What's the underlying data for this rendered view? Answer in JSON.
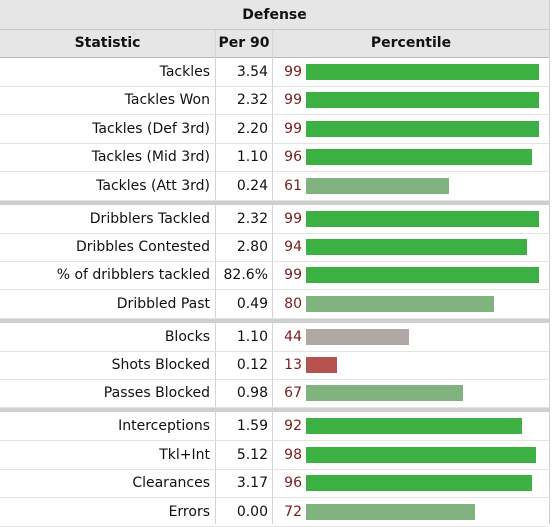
{
  "title": "Defense",
  "columns": {
    "statistic": "Statistic",
    "per90": "Per 90",
    "percentile": "Percentile"
  },
  "colors": {
    "elite": "#3cb043",
    "good": "#81b380",
    "average": "#b0a8a5",
    "poor": "#b5514f"
  },
  "groups": [
    [
      {
        "stat": "Tackles",
        "per90": "3.54",
        "percentile": 99
      },
      {
        "stat": "Tackles Won",
        "per90": "2.32",
        "percentile": 99
      },
      {
        "stat": "Tackles (Def 3rd)",
        "per90": "2.20",
        "percentile": 99
      },
      {
        "stat": "Tackles (Mid 3rd)",
        "per90": "1.10",
        "percentile": 96
      },
      {
        "stat": "Tackles (Att 3rd)",
        "per90": "0.24",
        "percentile": 61
      }
    ],
    [
      {
        "stat": "Dribblers Tackled",
        "per90": "2.32",
        "percentile": 99
      },
      {
        "stat": "Dribbles Contested",
        "per90": "2.80",
        "percentile": 94
      },
      {
        "stat": "% of dribblers tackled",
        "per90": "82.6%",
        "percentile": 99
      },
      {
        "stat": "Dribbled Past",
        "per90": "0.49",
        "percentile": 80
      }
    ],
    [
      {
        "stat": "Blocks",
        "per90": "1.10",
        "percentile": 44
      },
      {
        "stat": "Shots Blocked",
        "per90": "0.12",
        "percentile": 13
      },
      {
        "stat": "Passes Blocked",
        "per90": "0.98",
        "percentile": 67
      }
    ],
    [
      {
        "stat": "Interceptions",
        "per90": "1.59",
        "percentile": 92
      },
      {
        "stat": "Tkl+Int",
        "per90": "5.12",
        "percentile": 98
      },
      {
        "stat": "Clearances",
        "per90": "3.17",
        "percentile": 96
      },
      {
        "stat": "Errors",
        "per90": "0.00",
        "percentile": 72
      }
    ]
  ]
}
